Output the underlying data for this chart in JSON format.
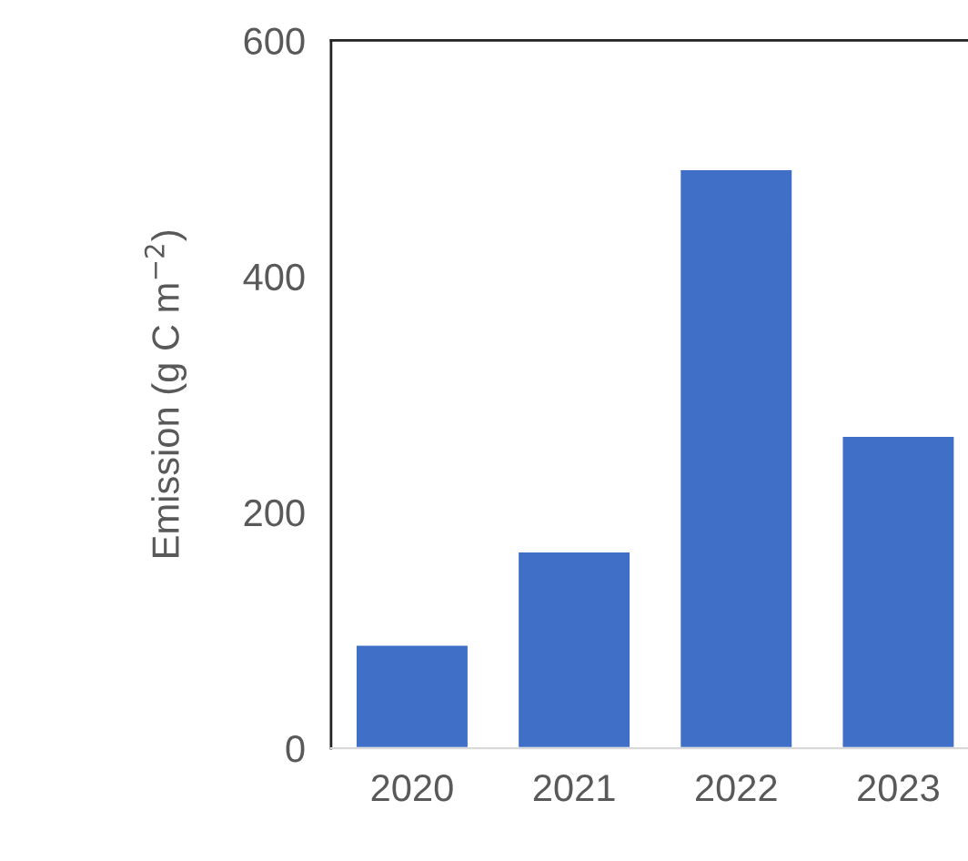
{
  "chart_data": {
    "type": "bar",
    "ylabel": "Emission (g C m$^{−2}$)",
    "categories": [
      "2020",
      "2021",
      "2022",
      "2023"
    ],
    "values": [
      88,
      167,
      491,
      265
    ],
    "color": "#3f6fc6",
    "ylim": [
      0,
      600
    ],
    "yticks": [
      0,
      200,
      400,
      600
    ]
  }
}
